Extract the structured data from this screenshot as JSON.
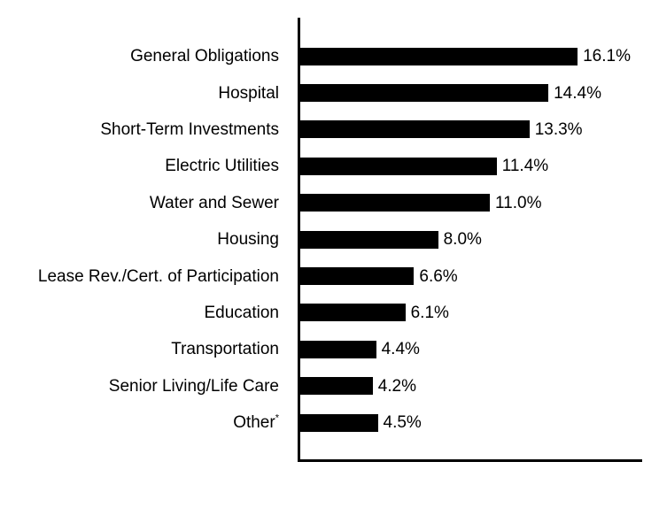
{
  "chart_data": {
    "type": "bar",
    "orientation": "horizontal",
    "title": "",
    "xlabel": "",
    "ylabel": "",
    "grid": false,
    "legend_position": "none",
    "xlim": [
      0,
      20
    ],
    "bar_color": "#000000",
    "axis_color": "#000000",
    "categories": [
      "General Obligations",
      "Hospital",
      "Short-Term Investments",
      "Electric Utilities",
      "Water and Sewer",
      "Housing",
      "Lease Rev./Cert. of Participation",
      "Education",
      "Transportation",
      "Senior Living/Life Care",
      "Other*"
    ],
    "values": [
      16.1,
      14.4,
      13.3,
      11.4,
      11.0,
      8.0,
      6.6,
      6.1,
      4.4,
      4.2,
      4.5
    ],
    "value_labels": [
      "16.1%",
      "14.4%",
      "13.3%",
      "11.4%",
      "11.0%",
      "8.0%",
      "6.6%",
      "6.1%",
      "4.4%",
      "4.2%",
      "4.5%"
    ]
  },
  "colors": {
    "background": "#ffffff",
    "text": "#000000"
  }
}
